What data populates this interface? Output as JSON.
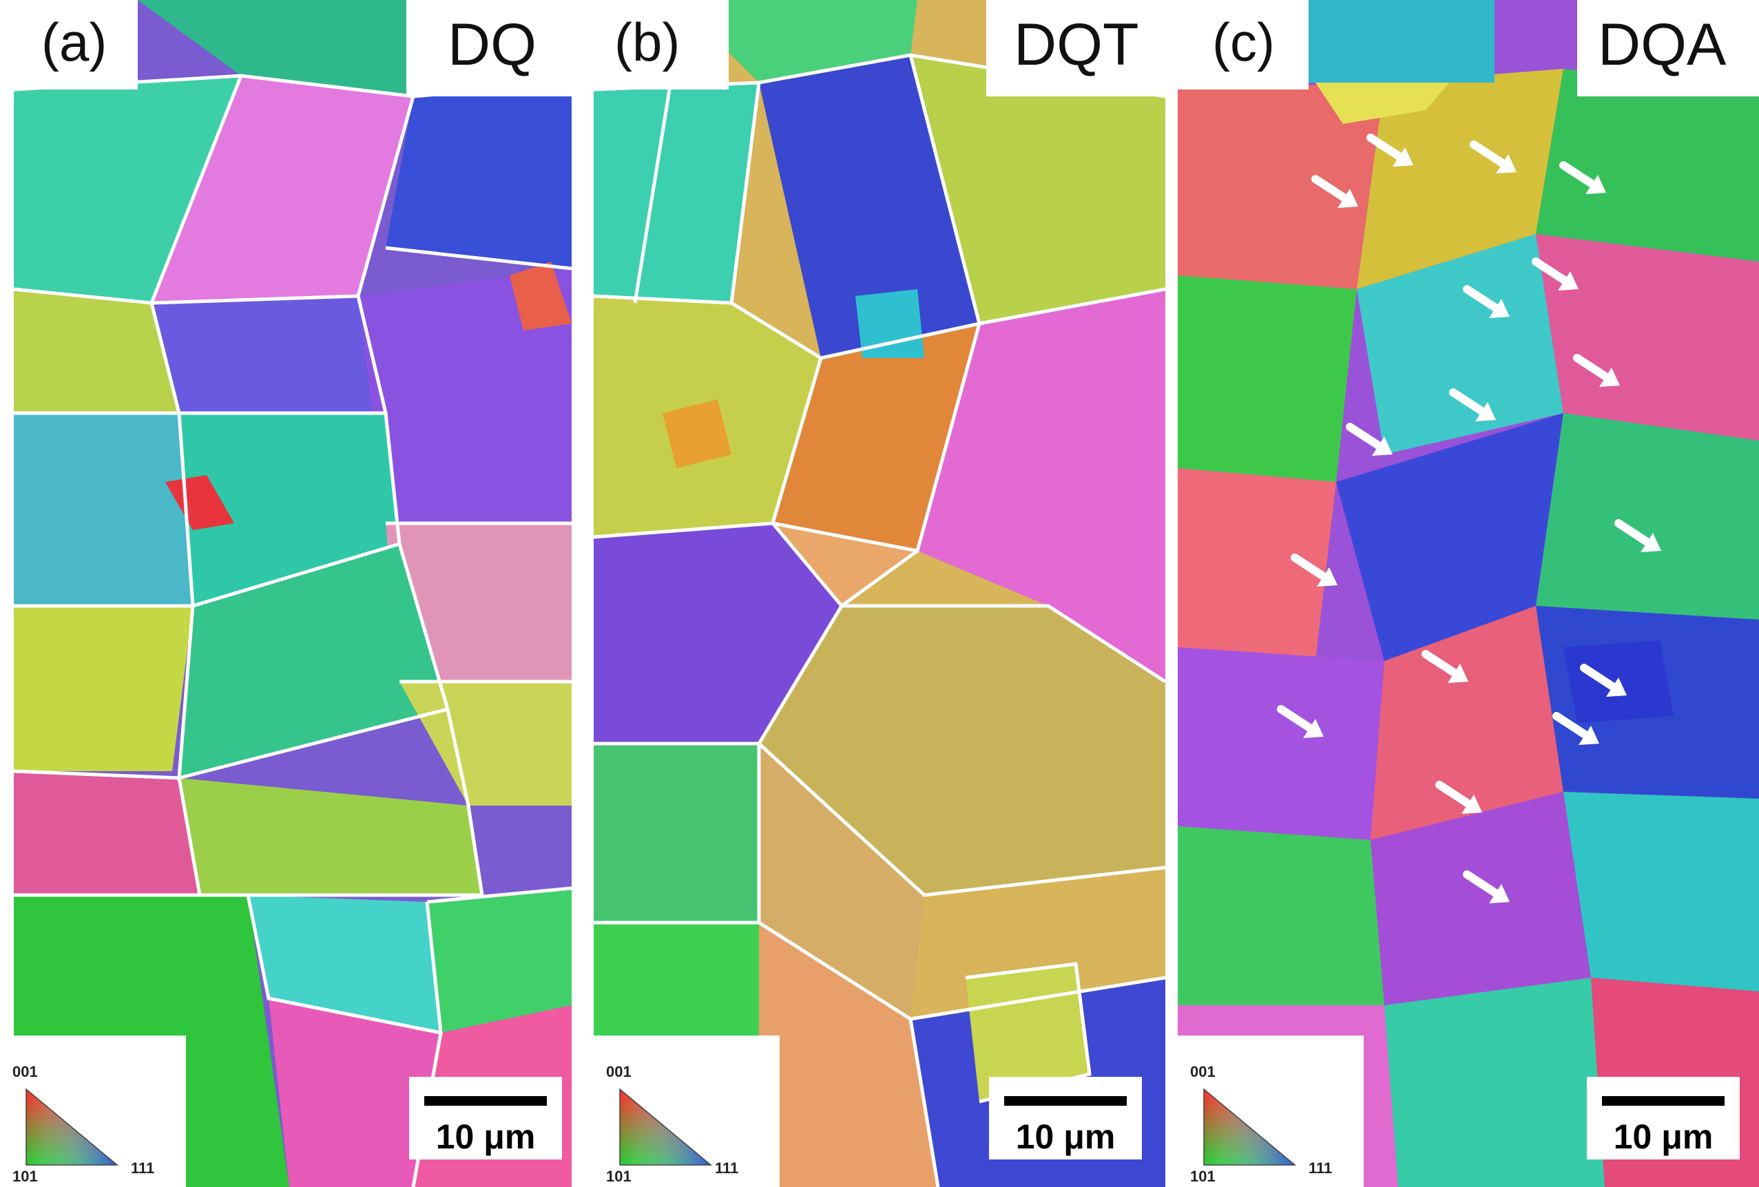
{
  "panels": [
    {
      "letter": "(a)",
      "title": "DQ",
      "scale_label": "10 μm",
      "key": {
        "top": "001",
        "left": "101",
        "right": "111"
      }
    },
    {
      "letter": "(b)",
      "title": "DQT",
      "scale_label": "10 μm",
      "key": {
        "top": "001",
        "left": "101",
        "right": "111"
      }
    },
    {
      "letter": "(c)",
      "title": "DQA",
      "scale_label": "10 μm",
      "key": {
        "top": "001",
        "left": "101",
        "right": "111"
      }
    }
  ],
  "colors": {
    "ipf_001": "#ff2a2a",
    "ipf_101": "#22cc33",
    "ipf_111": "#3344ee",
    "grain_boundary": "#ffffff",
    "arrow": "#ffffff"
  }
}
